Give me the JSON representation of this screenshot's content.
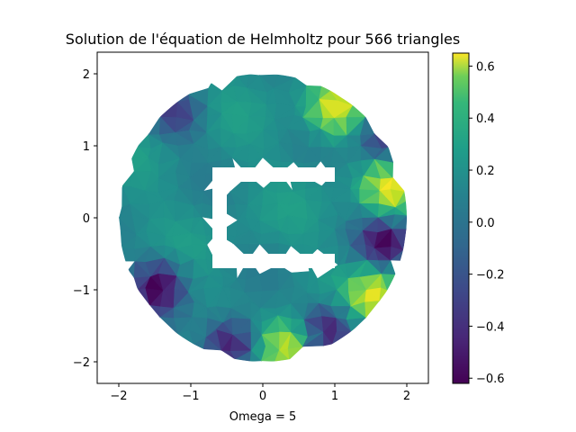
{
  "chart_data": {
    "type": "heatmap",
    "title": "Solution de l'équation de Helmholtz pour 566 triangles",
    "xlabel": "Omega = 5",
    "ylabel": "",
    "xlim": [
      -2.3,
      2.3
    ],
    "ylim": [
      -2.3,
      2.3
    ],
    "x_ticks": [
      -2,
      -1,
      0,
      1,
      2
    ],
    "x_tick_labels": [
      "−2",
      "−1",
      "0",
      "1",
      "2"
    ],
    "y_ticks": [
      -2,
      -1,
      0,
      1,
      2
    ],
    "y_tick_labels": [
      "−2",
      "−1",
      "0",
      "1",
      "2"
    ],
    "domain": {
      "shape": "disk",
      "center": [
        0,
        0
      ],
      "radius": 2,
      "hole": {
        "shape": "C-shaped obstacle",
        "outer_x": [
          -0.7,
          1.0
        ],
        "outer_y": [
          -0.7,
          0.7
        ],
        "inner_x": [
          -0.5,
          1.0
        ],
        "inner_y": [
          -0.5,
          0.5
        ]
      }
    },
    "triangles": 566,
    "omega": 5,
    "colormap": "viridis",
    "colorbar": {
      "min": -0.62,
      "max": 0.65,
      "ticks": [
        -0.6,
        -0.4,
        -0.2,
        0.0,
        0.2,
        0.4,
        0.6
      ],
      "tick_labels": [
        "−0.6",
        "−0.4",
        "−0.2",
        "0.0",
        "0.2",
        "0.4",
        "0.6"
      ]
    },
    "notable_regions": [
      {
        "x": 1.0,
        "y": 1.5,
        "value": 0.6
      },
      {
        "x": 1.75,
        "y": 0.4,
        "value": 0.6
      },
      {
        "x": 1.55,
        "y": -1.05,
        "value": 0.6
      },
      {
        "x": 0.35,
        "y": -1.8,
        "value": 0.6
      },
      {
        "x": -1.45,
        "y": -0.95,
        "value": -0.6
      },
      {
        "x": -0.45,
        "y": -1.75,
        "value": -0.6
      },
      {
        "x": 0.9,
        "y": -1.55,
        "value": -0.55
      },
      {
        "x": 1.7,
        "y": -0.35,
        "value": -0.55
      },
      {
        "x": 1.7,
        "y": 1.1,
        "value": -0.45
      },
      {
        "x": -1.2,
        "y": 1.45,
        "value": -0.35
      }
    ]
  }
}
